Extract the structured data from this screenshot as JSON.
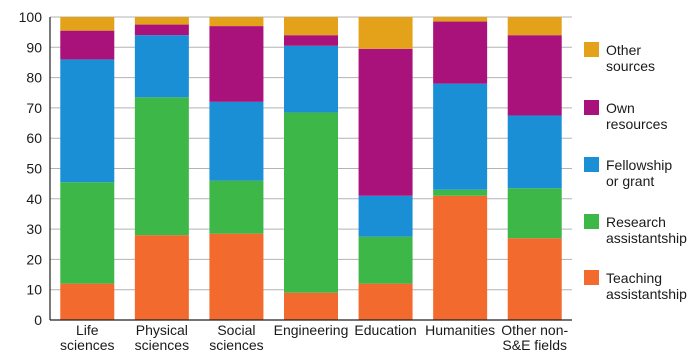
{
  "chart_data": {
    "type": "bar",
    "stacked": true,
    "title": "",
    "xlabel": "",
    "ylabel": "",
    "ylim": [
      0,
      100
    ],
    "yticks": [
      0,
      10,
      20,
      30,
      40,
      50,
      60,
      70,
      80,
      90,
      100
    ],
    "grid": true,
    "legend_position": "right",
    "categories": [
      [
        "Life",
        "sciences"
      ],
      [
        "Physical",
        "sciences"
      ],
      [
        "Social",
        "sciences"
      ],
      [
        "Engineering"
      ],
      [
        "Education"
      ],
      [
        "Humanities"
      ],
      [
        "Other non-",
        "S&E fields"
      ]
    ],
    "series": [
      {
        "name": [
          "Teaching",
          "assistantship"
        ],
        "color": "#f26a2e",
        "values": [
          12,
          28,
          28.5,
          9,
          12,
          41,
          27
        ]
      },
      {
        "name": [
          "Research",
          "assistantship"
        ],
        "color": "#3db848",
        "values": [
          33.5,
          45.5,
          17.5,
          59.5,
          15.5,
          2,
          16.5
        ]
      },
      {
        "name": [
          "Fellowship",
          "or grant"
        ],
        "color": "#1a8fd6",
        "values": [
          40.5,
          20.5,
          26,
          22,
          13.5,
          35,
          24
        ]
      },
      {
        "name": [
          "Own",
          "resources"
        ],
        "color": "#a8127a",
        "values": [
          9.5,
          3.5,
          25,
          3.5,
          48.5,
          20.5,
          26.5
        ]
      },
      {
        "name": [
          "Other",
          "sources"
        ],
        "color": "#e3a21a",
        "values": [
          4.5,
          2.5,
          3,
          6,
          10.5,
          1.5,
          6
        ]
      }
    ]
  }
}
